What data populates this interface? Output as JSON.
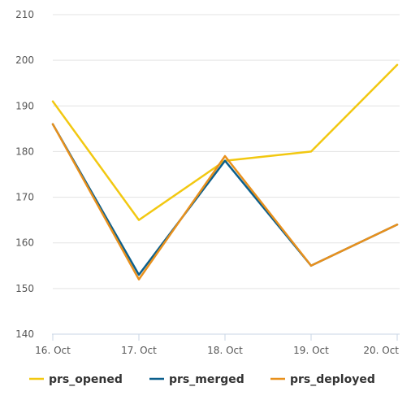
{
  "chart_data": {
    "type": "line",
    "title": "",
    "xlabel": "",
    "ylabel": "",
    "categories": [
      "16. Oct",
      "17. Oct",
      "18. Oct",
      "19. Oct",
      "20. Oct"
    ],
    "y_ticks": [
      "140",
      "150",
      "160",
      "170",
      "180",
      "190",
      "200",
      "210"
    ],
    "ylim": [
      140,
      210
    ],
    "grid": true,
    "legend_position": "bottom",
    "series": [
      {
        "name": "prs_opened",
        "color": "#f2c811",
        "values": [
          191,
          165,
          178,
          180,
          199
        ]
      },
      {
        "name": "prs_merged",
        "color": "#0b5f8c",
        "values": [
          186,
          153,
          178,
          155,
          164
        ]
      },
      {
        "name": "prs_deployed",
        "color": "#e8901c",
        "values": [
          186,
          152,
          179,
          155,
          164
        ]
      }
    ]
  }
}
